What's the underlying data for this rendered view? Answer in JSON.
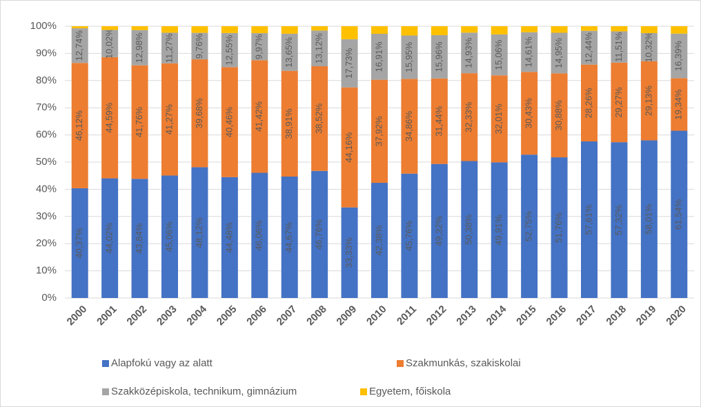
{
  "chart_data": {
    "type": "stacked_bar",
    "categories": [
      "2000",
      "2001",
      "2002",
      "2003",
      "2004",
      "2005",
      "2006",
      "2007",
      "2008",
      "2009",
      "2010",
      "2011",
      "2012",
      "2013",
      "2014",
      "2015",
      "2016",
      "2017",
      "2018",
      "2019",
      "2020"
    ],
    "series": [
      {
        "name": "Alapfokú vagy az alatt",
        "color": "#4472c4",
        "values": [
          40.37,
          44.02,
          43.84,
          45.06,
          48.12,
          44.48,
          46.06,
          44.67,
          46.76,
          33.33,
          42.38,
          45.76,
          49.32,
          50.38,
          49.91,
          52.75,
          51.76,
          57.61,
          57.32,
          58.01,
          61.54
        ],
        "value_labels": [
          "40,37%",
          "44,02%",
          "43,84%",
          "45,06%",
          "48,12%",
          "44,48%",
          "46,06%",
          "44,67%",
          "46,76%",
          "33,33%",
          "42,38%",
          "45,76%",
          "49,32%",
          "50,38%",
          "49,91%",
          "52,75%",
          "51,76%",
          "57,61%",
          "57,32%",
          "58,01%",
          "61,54%"
        ]
      },
      {
        "name": "Szakmunkás, szakiskolai",
        "color": "#ed7d31",
        "values": [
          46.12,
          44.59,
          41.76,
          41.27,
          39.68,
          40.46,
          41.42,
          38.91,
          38.52,
          44.16,
          37.92,
          34.86,
          31.44,
          32.33,
          32.01,
          30.43,
          30.88,
          28.26,
          29.27,
          29.13,
          19.34
        ],
        "value_labels": [
          "46,12%",
          "44,59%",
          "41,76%",
          "41,27%",
          "39,68%",
          "40,46%",
          "41,42%",
          "38,91%",
          "38,52%",
          "44,16%",
          "37,92%",
          "34,86%",
          "31,44%",
          "32,33%",
          "32,01%",
          "30,43%",
          "30,88%",
          "28,26%",
          "29,27%",
          "29,13%",
          "19,34%"
        ]
      },
      {
        "name": "Szakközépiskola, technikum, gimnázium",
        "color": "#a5a5a5",
        "values": [
          12.74,
          10.02,
          12.98,
          11.27,
          9.76,
          12.55,
          9.97,
          13.65,
          13.12,
          17.73,
          16.91,
          15.95,
          15.96,
          14.93,
          15.06,
          14.61,
          14.95,
          12.44,
          11.51,
          10.32,
          16.39
        ],
        "value_labels": [
          "12,74%",
          "10,02%",
          "12,98%",
          "11,27%",
          "9,76%",
          "12,55%",
          "9,97%",
          "13,65%",
          "13,12%",
          "17,73%",
          "16,91%",
          "15,95%",
          "15,96%",
          "14,93%",
          "15,06%",
          "14,61%",
          "14,95%",
          "12,44%",
          "11,51%",
          "10,32%",
          "16,39%"
        ]
      },
      {
        "name": "Egyetem, főiskola",
        "color": "#ffc000",
        "values": [
          0.77,
          1.37,
          1.42,
          2.4,
          2.44,
          2.51,
          2.55,
          2.77,
          1.6,
          4.78,
          2.79,
          3.43,
          3.28,
          2.36,
          3.02,
          2.21,
          2.41,
          1.69,
          1.9,
          2.54,
          2.73
        ]
      }
    ],
    "ylim": [
      0,
      100
    ],
    "yticks": [
      {
        "value": 0,
        "label": "0%"
      },
      {
        "value": 10,
        "label": "10%"
      },
      {
        "value": 20,
        "label": "20%"
      },
      {
        "value": 30,
        "label": "30%"
      },
      {
        "value": 40,
        "label": "40%"
      },
      {
        "value": 50,
        "label": "50%"
      },
      {
        "value": 60,
        "label": "60%"
      },
      {
        "value": 70,
        "label": "70%"
      },
      {
        "value": 80,
        "label": "80%"
      },
      {
        "value": 90,
        "label": "90%"
      },
      {
        "value": 100,
        "label": "100%"
      }
    ],
    "grid": true
  }
}
